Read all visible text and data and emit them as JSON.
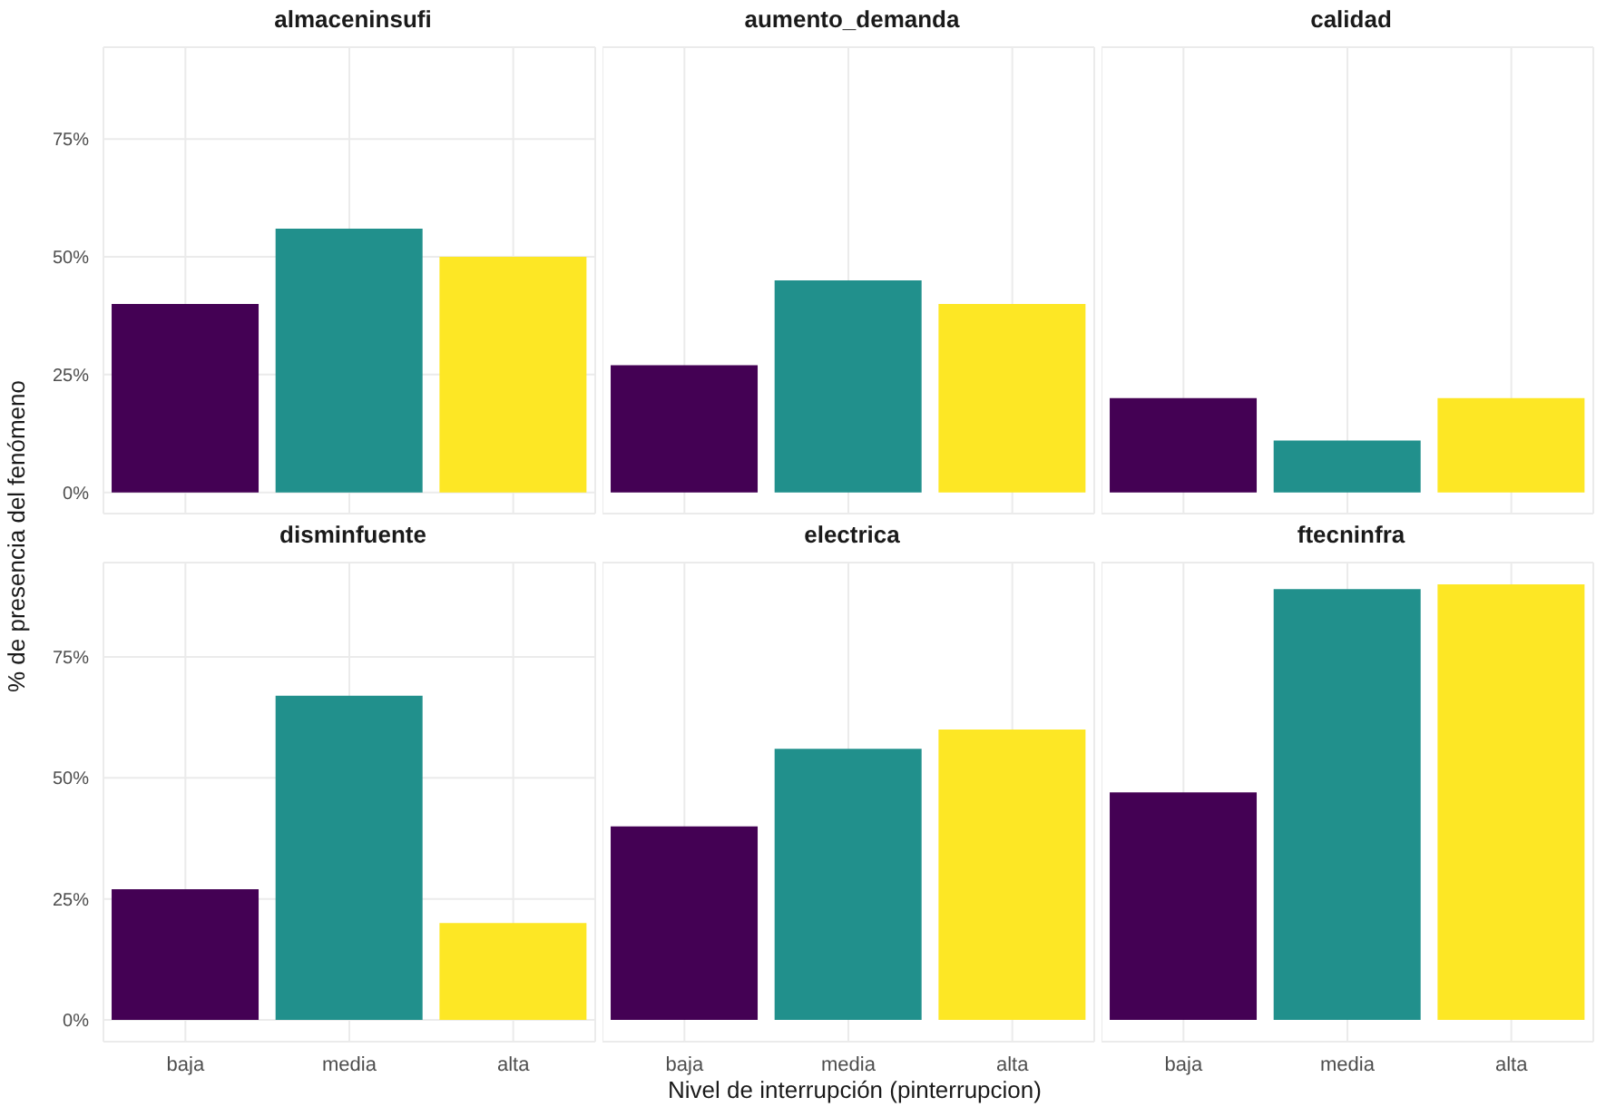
{
  "chart_data": [
    {
      "type": "bar",
      "title": "almaceninsufi",
      "ylabel": "% de presencia del fenómeno",
      "categories": [
        "baja",
        "media",
        "alta"
      ],
      "values": [
        40,
        56,
        50
      ],
      "colors": [
        "#440154",
        "#21908c",
        "#fde725"
      ],
      "ylim": [
        -4.5,
        94.5
      ],
      "yticks": [
        {
          "value": 0,
          "label": "0%"
        },
        {
          "value": 25,
          "label": "25%"
        },
        {
          "value": 50,
          "label": "50%"
        },
        {
          "value": 75,
          "label": "75%"
        }
      ],
      "grid": true,
      "tick_labels": "y"
    },
    {
      "type": "bar",
      "title": "aumento_demanda",
      "categories": [
        "baja",
        "media",
        "alta"
      ],
      "values": [
        27,
        45,
        40
      ],
      "colors": [
        "#440154",
        "#21908c",
        "#fde725"
      ],
      "ylim": [
        -4.5,
        94.5
      ],
      "yticks": [
        {
          "value": 0,
          "label": "0%"
        },
        {
          "value": 25,
          "label": "25%"
        },
        {
          "value": 50,
          "label": "50%"
        },
        {
          "value": 75,
          "label": "75%"
        }
      ],
      "grid": true,
      "tick_labels": false
    },
    {
      "type": "bar",
      "title": "calidad",
      "categories": [
        "baja",
        "media",
        "alta"
      ],
      "values": [
        20,
        11,
        20
      ],
      "colors": [
        "#440154",
        "#21908c",
        "#fde725"
      ],
      "ylim": [
        -4.5,
        94.5
      ],
      "yticks": [
        {
          "value": 0,
          "label": "0%"
        },
        {
          "value": 25,
          "label": "25%"
        },
        {
          "value": 50,
          "label": "50%"
        },
        {
          "value": 75,
          "label": "75%"
        }
      ],
      "grid": true,
      "tick_labels": false
    },
    {
      "type": "bar",
      "title": "disminfuente",
      "categories": [
        "baja",
        "media",
        "alta"
      ],
      "values": [
        27,
        67,
        20
      ],
      "colors": [
        "#440154",
        "#21908c",
        "#fde725"
      ],
      "ylim": [
        -4.5,
        94.5
      ],
      "yticks": [
        {
          "value": 0,
          "label": "0%"
        },
        {
          "value": 25,
          "label": "25%"
        },
        {
          "value": 50,
          "label": "50%"
        },
        {
          "value": 75,
          "label": "75%"
        }
      ],
      "grid": true
    },
    {
      "type": "bar",
      "title": "electrica",
      "xlabel": "Nivel de interrupción (pinterrupcion)",
      "categories": [
        "baja",
        "media",
        "alta"
      ],
      "values": [
        40,
        56,
        60
      ],
      "colors": [
        "#440154",
        "#21908c",
        "#fde725"
      ],
      "ylim": [
        -4.5,
        94.5
      ],
      "yticks": [
        {
          "value": 0,
          "label": "0%"
        },
        {
          "value": 25,
          "label": "25%"
        },
        {
          "value": 50,
          "label": "50%"
        },
        {
          "value": 75,
          "label": "75%"
        }
      ],
      "grid": true,
      "tick_labels": "x"
    },
    {
      "type": "bar",
      "title": "ftecninfra",
      "categories": [
        "baja",
        "media",
        "alta"
      ],
      "values": [
        47,
        89,
        90
      ],
      "colors": [
        "#440154",
        "#21908c",
        "#fde725"
      ],
      "ylim": [
        -4.5,
        94.5
      ],
      "yticks": [
        {
          "value": 0,
          "label": "0%"
        },
        {
          "value": 25,
          "label": "25%"
        },
        {
          "value": 50,
          "label": "50%"
        },
        {
          "value": 75,
          "label": "75%"
        }
      ],
      "grid": true,
      "tick_labels": "x"
    }
  ]
}
